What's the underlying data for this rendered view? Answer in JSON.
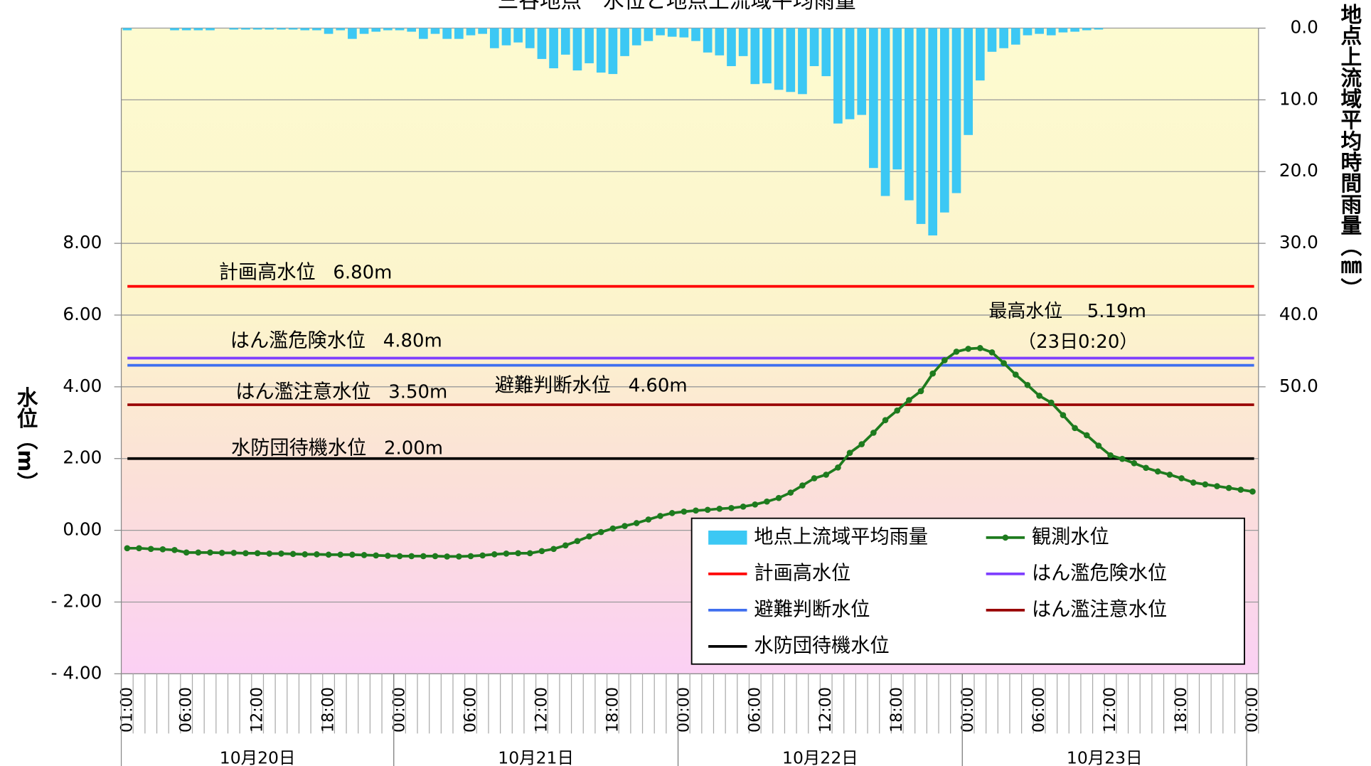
{
  "chart_data": {
    "type": "combo",
    "title": "三谷地点　水位と地点上流域平均雨量",
    "y_label": "水位（m）",
    "y2_label": "地点上流域平均時間雨量（㎜）",
    "categories": [
      "01:00",
      null,
      null,
      null,
      null,
      "06:00",
      null,
      null,
      null,
      null,
      null,
      "12:00",
      null,
      null,
      null,
      null,
      null,
      "18:00",
      null,
      null,
      null,
      null,
      null,
      "00:00",
      null,
      null,
      null,
      null,
      null,
      "06:00",
      null,
      null,
      null,
      null,
      null,
      "12:00",
      null,
      null,
      null,
      null,
      null,
      "18:00",
      null,
      null,
      null,
      null,
      null,
      "00:00",
      null,
      null,
      null,
      null,
      null,
      "06:00",
      null,
      null,
      null,
      null,
      null,
      "12:00",
      null,
      null,
      null,
      null,
      null,
      "18:00",
      null,
      null,
      null,
      null,
      null,
      "00:00",
      null,
      null,
      null,
      null,
      null,
      "06:00",
      null,
      null,
      null,
      null,
      null,
      "12:00",
      null,
      null,
      null,
      null,
      null,
      "18:00",
      null,
      null,
      null,
      null,
      null,
      "00:00"
    ],
    "days": [
      "10月20日",
      "10月21日",
      "10月22日",
      "10月23日"
    ],
    "ylim": [
      -4,
      14
    ],
    "yticks": [
      {
        "value": -4,
        "label": "- 4.00"
      },
      {
        "value": -2,
        "label": "- 2.00"
      },
      {
        "value": 0,
        "label": "0.00"
      },
      {
        "value": 2,
        "label": "2.00"
      },
      {
        "value": 4,
        "label": "4.00"
      },
      {
        "value": 6,
        "label": "6.00"
      },
      {
        "value": 8,
        "label": "8.00"
      }
    ],
    "y2lim": [
      0,
      90
    ],
    "y2_inverted": true,
    "y2ticks": [
      {
        "value": 0,
        "label": "0.0"
      },
      {
        "value": 10,
        "label": "10.0"
      },
      {
        "value": 20,
        "label": "20.0"
      },
      {
        "value": 30,
        "label": "30.0"
      },
      {
        "value": 40,
        "label": "40.0"
      },
      {
        "value": 50,
        "label": "50.0"
      }
    ],
    "grid": true,
    "series": [
      {
        "name": "地点上流域平均雨量",
        "type": "bar",
        "axis": "y2",
        "color": "#3cc8f4",
        "values": [
          0.3,
          0,
          0,
          0,
          0.3,
          0.3,
          0.3,
          0.3,
          0,
          0.2,
          0.2,
          0.2,
          0.2,
          0.2,
          0.2,
          0.3,
          0.3,
          0.8,
          0.3,
          1.5,
          0.8,
          0.5,
          0.3,
          0.3,
          0.5,
          1.5,
          0.8,
          1.5,
          1.5,
          1.0,
          0.8,
          2.8,
          2.4,
          2.0,
          2.8,
          4.3,
          5.6,
          3.7,
          5.9,
          4.9,
          6.2,
          6.4,
          3.9,
          2.4,
          1.8,
          1.0,
          1.2,
          1.3,
          1.8,
          3.4,
          3.8,
          5.3,
          3.9,
          7.8,
          7.7,
          8.6,
          8.9,
          9.2,
          5.3,
          6.7,
          13.3,
          12.7,
          12.1,
          19.5,
          23.4,
          19.7,
          24.0,
          27.3,
          28.9,
          25.7,
          23.0,
          14.9,
          7.3,
          3.3,
          2.8,
          2.3,
          1.0,
          0.8,
          1.0,
          0.6,
          0.5,
          0.3,
          0.2,
          0,
          0,
          0,
          0,
          0,
          0,
          0,
          0,
          0,
          0,
          0,
          0,
          0
        ]
      },
      {
        "name": "観測水位",
        "type": "line",
        "color": "#1e7b1e",
        "values": [
          -0.5,
          -0.5,
          -0.52,
          -0.53,
          -0.55,
          -0.62,
          -0.62,
          -0.62,
          -0.63,
          -0.63,
          -0.64,
          -0.64,
          -0.65,
          -0.65,
          -0.66,
          -0.67,
          -0.67,
          -0.68,
          -0.68,
          -0.68,
          -0.69,
          -0.7,
          -0.71,
          -0.72,
          -0.72,
          -0.72,
          -0.72,
          -0.73,
          -0.73,
          -0.72,
          -0.7,
          -0.67,
          -0.65,
          -0.64,
          -0.64,
          -0.58,
          -0.52,
          -0.42,
          -0.3,
          -0.17,
          -0.05,
          0.05,
          0.12,
          0.2,
          0.3,
          0.4,
          0.48,
          0.52,
          0.55,
          0.57,
          0.6,
          0.62,
          0.66,
          0.72,
          0.8,
          0.9,
          1.05,
          1.25,
          1.45,
          1.55,
          1.75,
          2.16,
          2.4,
          2.72,
          3.07,
          3.34,
          3.63,
          3.88,
          4.37,
          4.74,
          4.98,
          5.06,
          5.08,
          4.96,
          4.66,
          4.34,
          4.05,
          3.75,
          3.56,
          3.21,
          2.85,
          2.65,
          2.36,
          2.09,
          1.99,
          1.87,
          1.74,
          1.64,
          1.55,
          1.45,
          1.33,
          1.28,
          1.23,
          1.18,
          1.13,
          1.08
        ]
      }
    ],
    "levels": [
      {
        "name": "計画高水位",
        "value": 6.8,
        "value_label": "6.80m",
        "color": "#ff0000"
      },
      {
        "name": "はん濫危険水位",
        "value": 4.8,
        "value_label": "4.80m",
        "color": "#7f3fff"
      },
      {
        "name": "避難判断水位",
        "value": 4.6,
        "value_label": "4.60m",
        "color": "#3f6fef"
      },
      {
        "name": "はん濫注意水位",
        "value": 3.5,
        "value_label": "3.50m",
        "color": "#990000"
      },
      {
        "name": "水防団待機水位",
        "value": 2.0,
        "value_label": "2.00m",
        "color": "#000000"
      }
    ],
    "annotations": [
      {
        "text": "最高水位",
        "color": "#1e7b1e"
      },
      {
        "text": "5.19m",
        "color": "#1e7b1e"
      },
      {
        "text": "（23日0:20）",
        "color": "#1e7b1e"
      }
    ]
  }
}
